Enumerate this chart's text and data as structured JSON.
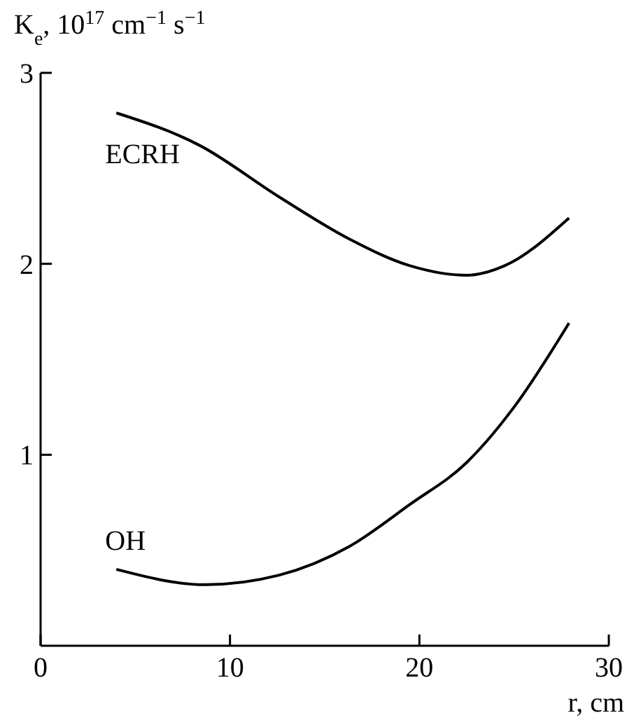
{
  "chart_data": {
    "type": "line",
    "xlabel": "r, cm",
    "ylabel": "K$_{e}$, 10$^{17}$ cm$^{−1}$ s$^{−1}$",
    "xlim": [
      0,
      30
    ],
    "xticks": [
      0,
      10,
      20,
      30
    ],
    "ylim": [
      0,
      3
    ],
    "yticks": [
      1,
      2,
      3
    ],
    "grid": false,
    "line_style": "solid",
    "marker": "none",
    "series": [
      {
        "name": "ECRH",
        "color": "#000000",
        "x": [
          4,
          8.4,
          12.6,
          16.3,
          19.5,
          22.5,
          24.5,
          27.9
        ],
        "values": [
          2.79,
          2.62,
          2.35,
          2.13,
          1.99,
          1.94,
          1.99,
          2.24
        ]
      },
      {
        "name": "OH",
        "color": "#000000",
        "x": [
          4,
          8.7,
          12.6,
          16.3,
          19.5,
          22.5,
          25,
          27.9
        ],
        "values": [
          0.4,
          0.32,
          0.37,
          0.52,
          0.74,
          0.96,
          1.25,
          1.69
        ]
      }
    ]
  }
}
